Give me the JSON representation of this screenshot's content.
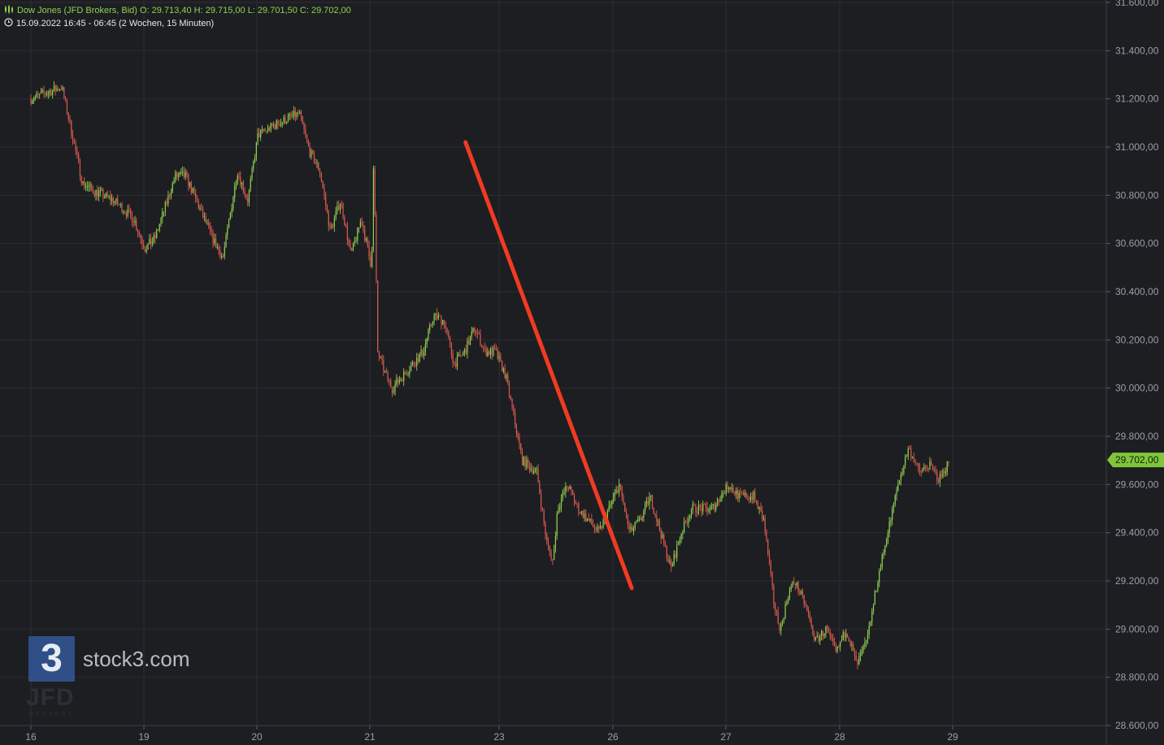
{
  "header": {
    "instrument_line": "Dow Jones (JFD Brokers, Bid)  O: 29.713,40  H: 29.715,00  L: 29.701,50  C: 29.702,00",
    "period_line": "15.09.2022 16:45 - 06:45   (2 Wochen, 15 Minuten)"
  },
  "watermark": {
    "brand": "stock3.com",
    "logo_glyph": "3",
    "broker": "JFD",
    "broker_sub": "BROKERS"
  },
  "colors": {
    "background": "#1c1e22",
    "up": "#8fd14f",
    "down": "#e05a4e",
    "trendline": "#f03b22",
    "price_tag": "#7fc63a"
  },
  "chart_data": {
    "type": "candlestick",
    "title": "",
    "x_tick_labels": [
      "16",
      "19",
      "20",
      "21",
      "23",
      "26",
      "27",
      "28",
      "29"
    ],
    "y_tick_labels": [
      "28.600,00",
      "28.800,00",
      "29.000,00",
      "29.200,00",
      "29.400,00",
      "29.600,00",
      "29.800,00",
      "30.000,00",
      "30.200,00",
      "30.400,00",
      "30.600,00",
      "30.800,00",
      "31.000,00",
      "31.200,00",
      "31.400,00",
      "31.600,00"
    ],
    "y_ticks": [
      28600,
      28800,
      29000,
      29200,
      29400,
      29600,
      29800,
      30000,
      30200,
      30400,
      30600,
      30800,
      31000,
      31200,
      31400,
      31600
    ],
    "ylim": [
      28600,
      31600
    ],
    "grid": true,
    "last_price": 29702,
    "last_price_label": "29.702,00",
    "price_path": [
      [
        0,
        31200
      ],
      [
        1.5,
        31250
      ],
      [
        2,
        31050
      ],
      [
        2.5,
        30850
      ],
      [
        3,
        30820
      ],
      [
        4,
        30780
      ],
      [
        5,
        30700
      ],
      [
        5.5,
        30580
      ],
      [
        6,
        30620
      ],
      [
        7,
        30880
      ],
      [
        7.5,
        30880
      ],
      [
        8,
        30780
      ],
      [
        8.8,
        30620
      ],
      [
        9.3,
        30540
      ],
      [
        10,
        30900
      ],
      [
        10.5,
        30780
      ],
      [
        11,
        31050
      ],
      [
        12,
        31100
      ],
      [
        13,
        31140
      ],
      [
        13.5,
        30980
      ],
      [
        14,
        30900
      ],
      [
        14.5,
        30650
      ],
      [
        15,
        30780
      ],
      [
        15.5,
        30550
      ],
      [
        16,
        30700
      ],
      [
        16.5,
        30500
      ],
      [
        16.6,
        30950
      ],
      [
        16.8,
        30150
      ],
      [
        17.2,
        30050
      ],
      [
        17.5,
        30000
      ],
      [
        18,
        30050
      ],
      [
        19,
        30150
      ],
      [
        19.5,
        30300
      ],
      [
        20,
        30280
      ],
      [
        20.5,
        30100
      ],
      [
        21,
        30150
      ],
      [
        21.5,
        30250
      ],
      [
        22,
        30150
      ],
      [
        22.5,
        30150
      ],
      [
        23,
        30050
      ],
      [
        23.8,
        29700
      ],
      [
        24.5,
        29650
      ],
      [
        25,
        29350
      ],
      [
        25.3,
        29280
      ],
      [
        25.5,
        29500
      ],
      [
        26,
        29600
      ],
      [
        26.5,
        29500
      ],
      [
        27,
        29450
      ],
      [
        27.5,
        29400
      ],
      [
        28,
        29500
      ],
      [
        28.5,
        29600
      ],
      [
        29,
        29400
      ],
      [
        29.5,
        29450
      ],
      [
        30,
        29550
      ],
      [
        30.5,
        29400
      ],
      [
        31,
        29250
      ],
      [
        31.5,
        29400
      ],
      [
        32,
        29500
      ],
      [
        33,
        29500
      ],
      [
        33.8,
        29600
      ],
      [
        34.3,
        29550
      ],
      [
        35,
        29550
      ],
      [
        35.5,
        29450
      ],
      [
        36,
        29100
      ],
      [
        36.3,
        29000
      ],
      [
        36.7,
        29150
      ],
      [
        37,
        29200
      ],
      [
        37.5,
        29100
      ],
      [
        38,
        28950
      ],
      [
        38.5,
        29000
      ],
      [
        39,
        28900
      ],
      [
        39.5,
        29000
      ],
      [
        40,
        28850
      ],
      [
        40.5,
        28950
      ],
      [
        41,
        29200
      ],
      [
        41.5,
        29400
      ],
      [
        42,
        29600
      ],
      [
        42.5,
        29750
      ],
      [
        42.8,
        29700
      ],
      [
        43,
        29650
      ],
      [
        43.5,
        29680
      ],
      [
        44,
        29620
      ],
      [
        44.5,
        29702
      ]
    ],
    "annotations": [
      {
        "type": "trendline",
        "from": [
          21.05,
          31020
        ],
        "to": [
          29.1,
          29170
        ]
      }
    ]
  }
}
